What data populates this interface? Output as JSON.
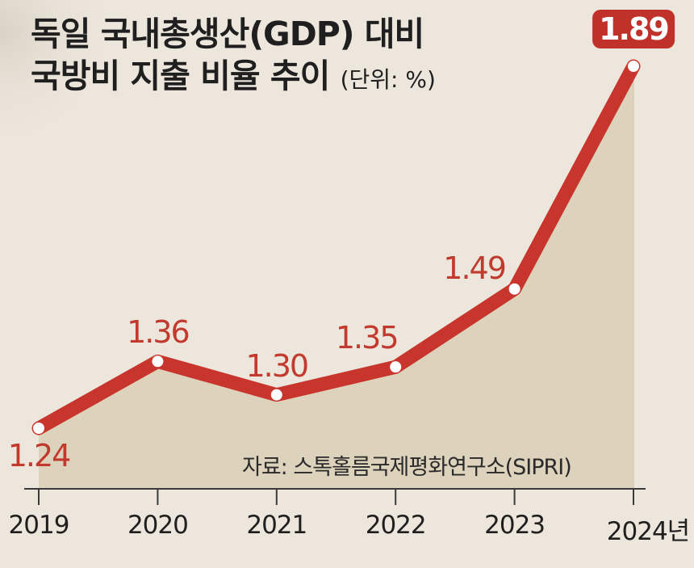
{
  "title": {
    "line1": "독일 국내총생산(GDP) 대비",
    "line2": "국방비 지출 비율 추이",
    "unit": "(단위: %)"
  },
  "source": "자료: 스톡홀름국제평화연구소(SIPRI)",
  "colors": {
    "line": "#c8352c",
    "area": "#ddd2bc",
    "background": "#ece6dc",
    "highlight": "#c0312a"
  },
  "chart_data": {
    "type": "area",
    "categories": [
      "2019",
      "2020",
      "2021",
      "2022",
      "2023",
      "2024년"
    ],
    "values": [
      1.24,
      1.36,
      1.3,
      1.35,
      1.49,
      1.89
    ],
    "value_labels": [
      "1.24",
      "1.36",
      "1.30",
      "1.35",
      "1.49",
      "1.89"
    ],
    "highlight_index": 5,
    "ylim": [
      1.0,
      1.95
    ],
    "grid": false,
    "legend": "none"
  }
}
